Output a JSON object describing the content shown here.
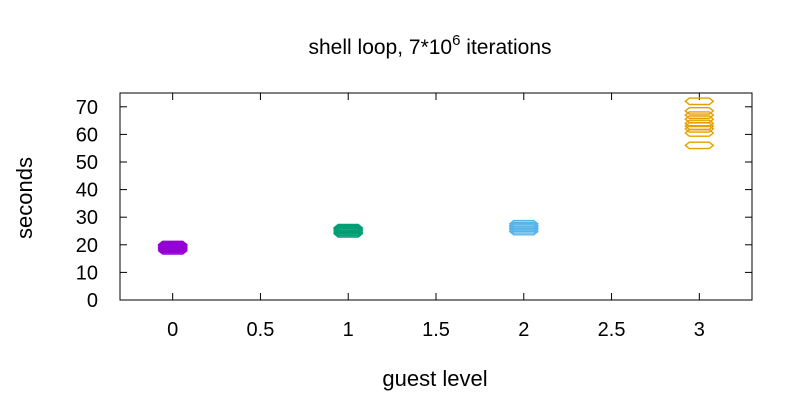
{
  "chart_data": {
    "type": "scatter",
    "title": {
      "text": "shell loop, 7*10",
      "superscript": "6",
      "suffix": " iterations"
    },
    "xlabel": "guest level",
    "ylabel": "seconds",
    "xlim": [
      -0.3,
      3.3
    ],
    "ylim": [
      0,
      75
    ],
    "x_ticks": [
      {
        "value": 0,
        "label": "0"
      },
      {
        "value": 0.5,
        "label": "0.5"
      },
      {
        "value": 1,
        "label": "1"
      },
      {
        "value": 1.5,
        "label": "1.5"
      },
      {
        "value": 2,
        "label": "2"
      },
      {
        "value": 2.5,
        "label": "2.5"
      },
      {
        "value": 3,
        "label": "3"
      }
    ],
    "y_ticks": [
      {
        "value": 0,
        "label": "0"
      },
      {
        "value": 10,
        "label": "10"
      },
      {
        "value": 20,
        "label": "20"
      },
      {
        "value": 30,
        "label": "30"
      },
      {
        "value": 40,
        "label": "40"
      },
      {
        "value": 50,
        "label": "50"
      },
      {
        "value": 60,
        "label": "60"
      },
      {
        "value": 70,
        "label": "70"
      }
    ],
    "grid": false,
    "marker": "hexagon-open",
    "series": [
      {
        "x": 0,
        "color": "#9400d3",
        "values": [
          17.8,
          18.3,
          18.7,
          19.0,
          19.3,
          19.7,
          20.1
        ]
      },
      {
        "x": 1,
        "color": "#009e73",
        "values": [
          24.0,
          24.5,
          25.0,
          25.4,
          25.8,
          26.2
        ]
      },
      {
        "x": 2,
        "color": "#56b4e9",
        "values": [
          24.8,
          25.4,
          26.0,
          26.5,
          27.0,
          27.6
        ]
      },
      {
        "x": 3,
        "color": "#e69f00",
        "values": [
          56.0,
          60.5,
          62.0,
          63.0,
          64.0,
          65.5,
          67.0,
          68.5,
          72.0
        ]
      }
    ]
  }
}
